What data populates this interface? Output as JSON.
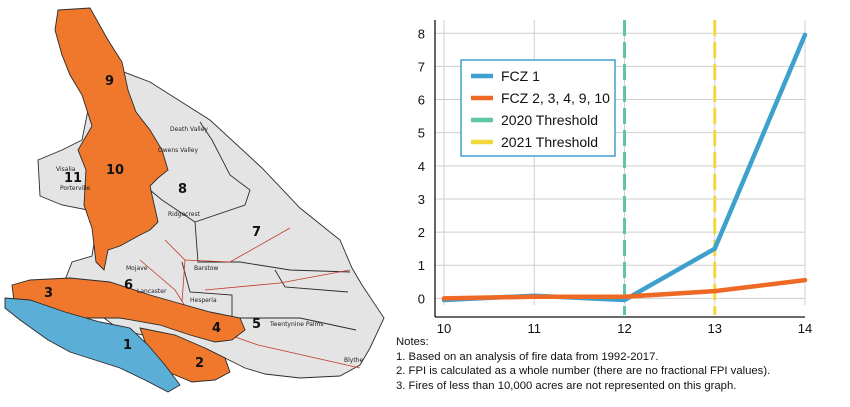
{
  "map": {
    "colors": {
      "orange": "#F0782D",
      "blue": "#5BAED6",
      "land": "#E3E3E3",
      "border": "#2B2B2B",
      "road": "#C0392B"
    },
    "zone_labels": [
      "9",
      "10",
      "11",
      "8",
      "7",
      "6",
      "3",
      "1",
      "2",
      "4",
      "5"
    ],
    "places": [
      "Death Valley",
      "Owens Valley",
      "Visalia",
      "Porterville",
      "Ridgecrest",
      "Mojave",
      "Lancaster",
      "Barstow",
      "Hesperia",
      "Twentynine Palms",
      "Blythe"
    ]
  },
  "chart_data": {
    "type": "line",
    "x": [
      10,
      11,
      12,
      13,
      14
    ],
    "xlim": [
      9.9,
      14
    ],
    "ylim": [
      -0.2,
      8.4
    ],
    "xticks": [
      "10",
      "11",
      "12",
      "13",
      "14"
    ],
    "yticks": [
      "0",
      "1",
      "2",
      "3",
      "4",
      "5",
      "6",
      "7",
      "8"
    ],
    "grid": true,
    "legend_position": "upper-left",
    "series": [
      {
        "name": "FCZ 1",
        "color": "#3EA0CC",
        "x": [
          10,
          11,
          12,
          13,
          14
        ],
        "values": [
          -0.05,
          0.08,
          -0.05,
          1.5,
          7.95
        ]
      },
      {
        "name": "FCZ 2, 3, 4, 9, 10",
        "color": "#EE6A24",
        "x": [
          10,
          11,
          12,
          13,
          14
        ],
        "values": [
          0.0,
          0.05,
          0.05,
          0.22,
          0.55
        ]
      }
    ],
    "thresholds": [
      {
        "name": "2020 Threshold",
        "color": "#5FC5A5",
        "x": 12
      },
      {
        "name": "2021 Threshold",
        "color": "#F2D83A",
        "x": 13
      }
    ]
  },
  "notes": {
    "heading": "Notes:",
    "items": [
      "1. Based on an analysis of fire data from 1992-2017.",
      "2. FPI is calculated as a whole number (there are no fractional FPI values).",
      "3. Fires of less than 10,000 acres are not represented on this graph."
    ]
  }
}
